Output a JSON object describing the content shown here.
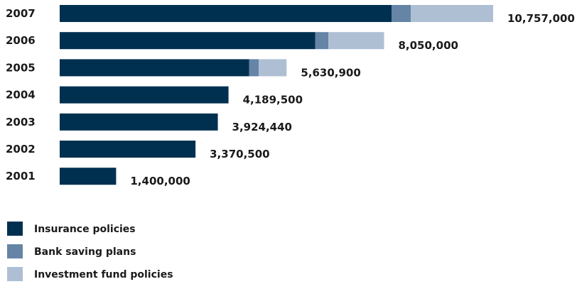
{
  "chart_data": {
    "type": "bar",
    "orientation": "horizontal",
    "stacked": true,
    "title": "",
    "xlabel": "",
    "ylabel": "",
    "categories": [
      "2007",
      "2006",
      "2005",
      "2004",
      "2003",
      "2002",
      "2001"
    ],
    "totals_labels": [
      "10,757,000",
      "8,050,000",
      "5,630,900",
      "4,189,500",
      "3,924,440",
      "3,370,500",
      "1,400,000"
    ],
    "series": [
      {
        "name": "Insurance policies",
        "color": "#003050",
        "values": [
          8240000,
          6340000,
          4700000,
          4189500,
          3924440,
          3370500,
          1400000
        ]
      },
      {
        "name": "Bank saving plans",
        "color": "#6584a6",
        "values": [
          475000,
          330000,
          240000,
          0,
          0,
          0,
          0
        ]
      },
      {
        "name": "Investment fund policies",
        "color": "#aebfd4",
        "values": [
          2042000,
          1380000,
          690900,
          0,
          0,
          0,
          0
        ]
      }
    ],
    "xlim": [
      0,
      10757000
    ],
    "grid": false,
    "legend_position": "bottom-left"
  }
}
